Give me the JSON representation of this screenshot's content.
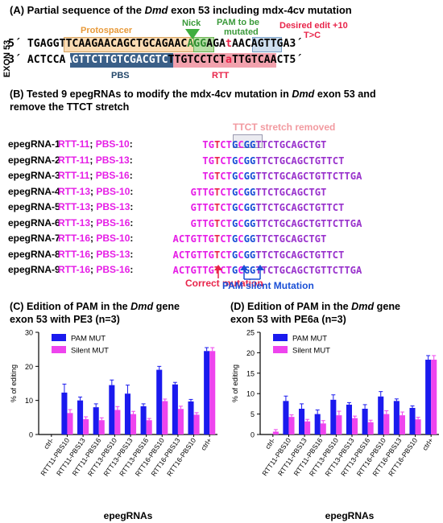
{
  "panelA": {
    "title_prefix": "(A) Partial sequence of the ",
    "title_gene": "Dmd",
    "title_suffix": " exon 53 including mdx-4cv mutation",
    "exon_label": "EXON 53",
    "top_prime_left": "5´",
    "top_prime_right": "3´",
    "bottom_prime_left": "3´",
    "bottom_prime_right": "5´",
    "top_seq": {
      "a": "TGAGG",
      "protospacer": "TTCAAGAACAGCTGCAGAAC",
      "pam": "AGG",
      "b": "AGA",
      "mut": "t",
      "c": "AACAGTTGA"
    },
    "bottom_seq": {
      "a": "ACTCCA",
      "pbs": "AGTTCTTGTCGACGTC",
      "rtt1": "TTGTCCTCT",
      "mut": "a",
      "rtt2": "TTGTCA",
      "c": "ACT"
    },
    "protospacer_label": "Protospacer",
    "nick_label": "Nick",
    "pam_label_1": "PAM to be",
    "pam_label_2": "mutated",
    "desired_label_1": "Desired edit +10",
    "desired_label_2": "T>C",
    "pbs_label": "PBS",
    "rtt_label": "RTT"
  },
  "panelB": {
    "title_line1_prefix": "(B) Tested 9 epegRNAs to modify the mdx-4cv mutation in ",
    "title_gene": "Dmd",
    "title_line1_suffix": " exon 53 and",
    "title_line2": "remove the TTCT stretch",
    "removed_label": "TTCT stretch removed",
    "correct_label": "Correct mutation",
    "pam_silent_label": "PAM silent Mutation",
    "rows": [
      {
        "name": "epegRNA-1",
        "rtt": "RTT-11",
        "pbs": "PBS-10",
        "s1": "",
        "s2": "TG",
        "s3": "T",
        "s4": "CT",
        "s5": "G",
        "s6": "C",
        "s7": "GG",
        "s8": "TTCTGCAGCTGT"
      },
      {
        "name": "epegRNA-2",
        "rtt": "RTT-11",
        "pbs": "PBS-13",
        "s1": "",
        "s2": "TG",
        "s3": "T",
        "s4": "CT",
        "s5": "G",
        "s6": "C",
        "s7": "GG",
        "s8": "TTCTGCAGCTGTTCT"
      },
      {
        "name": "epegRNA-3",
        "rtt": "RTT-11",
        "pbs": "PBS-16",
        "s1": "",
        "s2": "TG",
        "s3": "T",
        "s4": "CT",
        "s5": "G",
        "s6": "C",
        "s7": "GG",
        "s8": "TTCTGCAGCTGTTCTTGA"
      },
      {
        "name": "epegRNA-4",
        "rtt": "RTT-13",
        "pbs": "PBS-10",
        "s1": "GT",
        "s2": "TG",
        "s3": "T",
        "s4": "CT",
        "s5": "G",
        "s6": "C",
        "s7": "GG",
        "s8": "TTCTGCAGCTGT"
      },
      {
        "name": "epegRNA-5",
        "rtt": "RTT-13",
        "pbs": "PBS-13",
        "s1": "GT",
        "s2": "TG",
        "s3": "T",
        "s4": "CT",
        "s5": "G",
        "s6": "C",
        "s7": "GG",
        "s8": "TTCTGCAGCTGTTCT"
      },
      {
        "name": "epegRNA-6",
        "rtt": "RTT-13",
        "pbs": "PBS-16",
        "s1": "GT",
        "s2": "TG",
        "s3": "T",
        "s4": "CT",
        "s5": "G",
        "s6": "C",
        "s7": "GG",
        "s8": "TTCTGCAGCTGTTCTTGA"
      },
      {
        "name": "epegRNA-7",
        "rtt": "RTT-16",
        "pbs": "PBS-10",
        "s1": "ACTGT",
        "s2": "TG",
        "s3": "T",
        "s4": "CT",
        "s5": "G",
        "s6": "C",
        "s7": "GG",
        "s8": "TTCTGCAGCTGT"
      },
      {
        "name": "epegRNA-8",
        "rtt": "RTT-16",
        "pbs": "PBS-13",
        "s1": "ACTGT",
        "s2": "TG",
        "s3": "T",
        "s4": "CT",
        "s5": "G",
        "s6": "C",
        "s7": "GG",
        "s8": "TTCTGCAGCTGTTCT"
      },
      {
        "name": "epegRNA-9",
        "rtt": "RTT-16",
        "pbs": "PBS-16",
        "s1": "ACTGT",
        "s2": "TG",
        "s3": "T",
        "s4": "CT",
        "s5": "G",
        "s6": "C",
        "s7": "GG",
        "s8": "TTCTGCAGCTGTTCTTGA"
      }
    ]
  },
  "chart_data": [
    {
      "type": "bar",
      "title_line1_prefix": "(C) Edition of PAM in the ",
      "title_gene": "Dmd",
      "title_line1_suffix": " gene",
      "title_line2": "exon 53 with PE3 (n=3)",
      "xlabel": "epegRNAs",
      "ylabel": "% of editing",
      "ylim": [
        0,
        30
      ],
      "yticks": [
        "0",
        "10",
        "20",
        "30"
      ],
      "categories": [
        "ctrl-",
        "RTT11-PBS10",
        "RTT11-PBS13",
        "RTT11-PBS16",
        "RTT13-PBS10",
        "RTT13-PBS13",
        "RTT13-PBS16",
        "RTT16-PBS10",
        "RTT16-PBS13",
        "RTT16-PBS10",
        "ctrl+"
      ],
      "legend_position": "top-left",
      "series": [
        {
          "name": "PAM MUT",
          "color": "#1a1aee",
          "values": [
            0,
            12.3,
            10,
            8,
            14.5,
            12,
            8.3,
            19,
            14.7,
            9.7,
            24.5
          ],
          "errors": [
            0,
            2.5,
            1,
            1,
            1.5,
            2.5,
            0.7,
            1,
            0.6,
            0.6,
            1
          ]
        },
        {
          "name": "Silent MUT",
          "color": "#ee44ee",
          "values": [
            0,
            6.3,
            4.5,
            4.2,
            7.2,
            6,
            4.2,
            9.8,
            7.5,
            5.8,
            24.5
          ],
          "errors": [
            0,
            1,
            0.7,
            0.7,
            1,
            0.8,
            0.5,
            0.6,
            0.8,
            0.6,
            1
          ]
        }
      ]
    },
    {
      "type": "bar",
      "title_line1_prefix": "(D) Edition of PAM in the ",
      "title_gene": "Dmd",
      "title_line1_suffix": " gene",
      "title_line2": "exon 53 with PE6a (n=3)",
      "xlabel": "epegRNAs",
      "ylabel": "% of editing",
      "ylim": [
        0,
        25
      ],
      "yticks": [
        "0",
        "5",
        "10",
        "15",
        "20",
        "25"
      ],
      "categories": [
        "ctrl-",
        "RTT11-PBS10",
        "RTT11-PBS13",
        "RTT11-PBS16",
        "RTT13-PBS10",
        "RTT13-PBS13",
        "RTT13-PBS16",
        "RTT16-PBS10",
        "RTT16-PBS13",
        "RTT16-PBS10",
        "ctrl+"
      ],
      "legend_position": "top-left",
      "series": [
        {
          "name": "PAM MUT",
          "color": "#1a1aee",
          "values": [
            0,
            8.2,
            6.3,
            5,
            8.5,
            7.3,
            6.3,
            9.3,
            8.2,
            6.5,
            18.3
          ],
          "errors": [
            0,
            1.2,
            1.2,
            1,
            1.2,
            0.5,
            1,
            1.2,
            0.5,
            0.5,
            1
          ]
        },
        {
          "name": "Silent MUT",
          "color": "#ee44ee",
          "values": [
            0.7,
            4.3,
            3.2,
            2.7,
            4.7,
            4,
            3,
            5,
            4.7,
            3.7,
            18.3
          ],
          "errors": [
            0.5,
            0.5,
            0.5,
            0.7,
            1,
            0.5,
            0.5,
            0.8,
            0.8,
            0.5,
            1
          ]
        }
      ]
    }
  ]
}
